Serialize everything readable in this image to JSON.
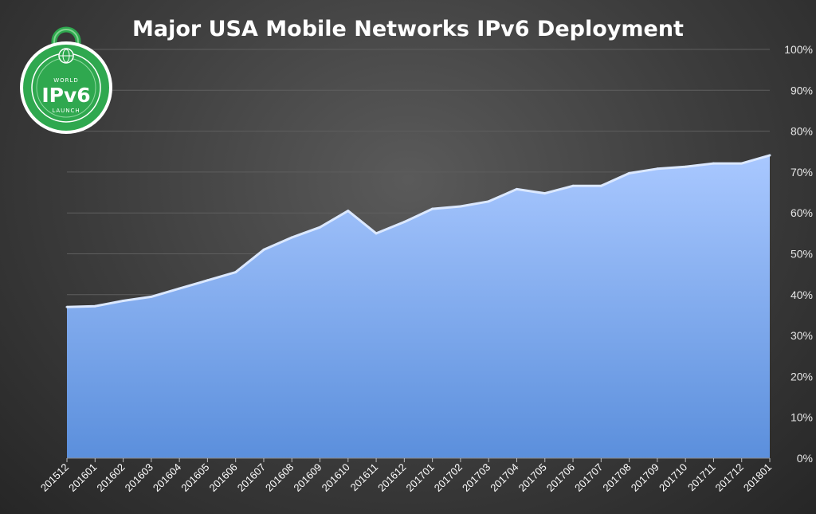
{
  "colors": {
    "area_top": "#a9c8ff",
    "area_bottom": "#5b8fdc",
    "area_stroke": "#dbe8ff",
    "grid": "#5e5e5e",
    "logo_green": "#2fa84f"
  },
  "logo": {
    "top_text": "WORLD",
    "main_text": "IPv6",
    "bottom_text": "LAUNCH",
    "icon": "padlock-globe-icon"
  },
  "chart_data": {
    "type": "area",
    "title": "Major USA Mobile Networks IPv6 Deployment",
    "xlabel": "",
    "ylabel": "",
    "ylim": [
      0,
      100
    ],
    "y_ticks": [
      "0%",
      "10%",
      "20%",
      "30%",
      "40%",
      "50%",
      "60%",
      "70%",
      "80%",
      "90%",
      "100%"
    ],
    "y_axis_side": "right",
    "grid": true,
    "legend": "none",
    "categories": [
      "201512",
      "201601",
      "201602",
      "201603",
      "201604",
      "201605",
      "201606",
      "201607",
      "201608",
      "201609",
      "201610",
      "201611",
      "201612",
      "201701",
      "201702",
      "201703",
      "201704",
      "201705",
      "201706",
      "201707",
      "201708",
      "201709",
      "201710",
      "201711",
      "201712",
      "201801"
    ],
    "values": [
      37,
      37.2,
      38.5,
      39.5,
      41.5,
      43.5,
      45.5,
      51,
      54,
      56.5,
      60.5,
      55,
      57.8,
      61,
      61.6,
      62.8,
      65.8,
      64.8,
      66.6,
      66.6,
      69.7,
      70.8,
      71.3,
      72.1,
      72.1,
      74.1
    ]
  }
}
